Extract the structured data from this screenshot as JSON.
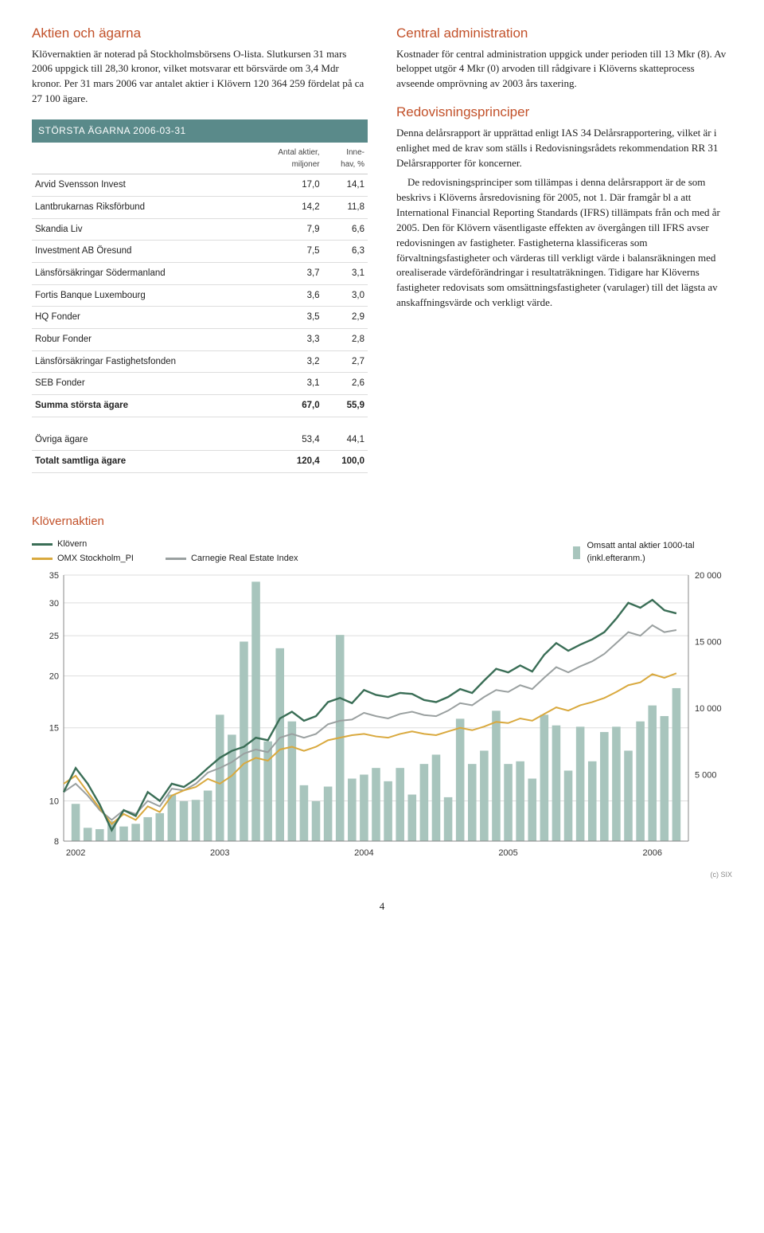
{
  "left": {
    "heading": "Aktien och ägarna",
    "para1": "Klövernaktien är noterad på Stockholmsbörsens O-lista. Slutkursen 31 mars 2006 uppgick till 28,30 kronor, vilket motsvarar ett börsvärde om 3,4 Mdr kronor. Per 31 mars 2006 var antalet aktier i Klövern 120 364 259 fördelat på ca 27 100 ägare.",
    "tableTitle": "STÖRSTA ÄGARNA 2006-03-31",
    "col1": "",
    "col2a": "Antal aktier,",
    "col2b": "miljoner",
    "col3a": "Inne-",
    "col3b": "hav, %",
    "rows": [
      {
        "n": "Arvid Svensson Invest",
        "a": "17,0",
        "b": "14,1"
      },
      {
        "n": "Lantbrukarnas Riksförbund",
        "a": "14,2",
        "b": "11,8"
      },
      {
        "n": "Skandia Liv",
        "a": "7,9",
        "b": "6,6"
      },
      {
        "n": "Investment AB Öresund",
        "a": "7,5",
        "b": "6,3"
      },
      {
        "n": "Länsförsäkringar Södermanland",
        "a": "3,7",
        "b": "3,1"
      },
      {
        "n": "Fortis Banque Luxembourg",
        "a": "3,6",
        "b": "3,0"
      },
      {
        "n": "HQ Fonder",
        "a": "3,5",
        "b": "2,9"
      },
      {
        "n": "Robur Fonder",
        "a": "3,3",
        "b": "2,8"
      },
      {
        "n": "Länsförsäkringar Fastighetsfonden",
        "a": "3,2",
        "b": "2,7"
      },
      {
        "n": "SEB Fonder",
        "a": "3,1",
        "b": "2,6"
      }
    ],
    "sum": {
      "n": "Summa största ägare",
      "a": "67,0",
      "b": "55,9"
    },
    "other": {
      "n": "Övriga ägare",
      "a": "53,4",
      "b": "44,1"
    },
    "total": {
      "n": "Totalt samtliga ägare",
      "a": "120,4",
      "b": "100,0"
    }
  },
  "right": {
    "h1": "Central administration",
    "p1": "Kostnader för central administration uppgick under perioden till 13 Mkr (8). Av beloppet utgör 4 Mkr (0) arvoden till rådgivare i Klöverns skatteprocess avseende omprövning av 2003 års taxering.",
    "h2": "Redovisningsprinciper",
    "p2": "Denna delårsrapport är upprättad enligt IAS 34 Delårsrapportering, vilket är i enlighet med de krav som ställs i Redovisningsrådets rekommendation RR 31 Delårsrapporter för koncerner.",
    "p3": "De redovisningsprinciper som tillämpas i denna delårsrapport är de som beskrivs i Klöverns årsredovisning för 2005, not 1. Där framgår bl a att International Financial Reporting Standards (IFRS) tillämpats från och med år 2005. Den för Klövern väsentligaste effekten av övergången till IFRS avser redovisningen av fastigheter. Fastigheterna klassificeras som förvaltningsfastigheter och värderas till verkligt värde i balansräkningen med orealiserade värdeförändringar i resultaträkningen. Tidigare har Klöverns fastigheter redovisats som omsättningsfastigheter (varulager) till det lägsta av anskaffningsvärde och verkligt värde."
  },
  "chart": {
    "title": "Klövernaktien",
    "legend": {
      "klovern": "Klövern",
      "omx": "OMX Stockholm_PI",
      "carnegie": "Carnegie Real Estate Index",
      "volume": "Omsatt antal aktier 1000-tal (inkl.efteranm.)"
    },
    "colors": {
      "klovern": "#3a6e56",
      "omx": "#d9a93e",
      "carnegie": "#9aa0a0",
      "bars": "#a8c5bd",
      "grid": "#dddddd",
      "axis": "#888888",
      "bg": "#ffffff"
    },
    "yLeftTicks": [
      8,
      10,
      15,
      20,
      25,
      30,
      35
    ],
    "yRightTicks": [
      5000,
      10000,
      15000,
      20000
    ],
    "yRightLabels": [
      "5 000",
      "10 000",
      "15 000",
      "20 000"
    ],
    "xLabels": [
      "2002",
      "2003",
      "2004",
      "2005",
      "2006"
    ],
    "xRange": [
      0,
      52
    ],
    "bars": [
      {
        "x": 1,
        "v": 2800
      },
      {
        "x": 2,
        "v": 1000
      },
      {
        "x": 3,
        "v": 900
      },
      {
        "x": 4,
        "v": 1500
      },
      {
        "x": 5,
        "v": 1100
      },
      {
        "x": 6,
        "v": 1300
      },
      {
        "x": 7,
        "v": 1800
      },
      {
        "x": 8,
        "v": 2100
      },
      {
        "x": 9,
        "v": 3500
      },
      {
        "x": 10,
        "v": 3000
      },
      {
        "x": 11,
        "v": 3100
      },
      {
        "x": 12,
        "v": 3800
      },
      {
        "x": 13,
        "v": 9500
      },
      {
        "x": 14,
        "v": 8000
      },
      {
        "x": 15,
        "v": 15000
      },
      {
        "x": 16,
        "v": 19500
      },
      {
        "x": 17,
        "v": 7500
      },
      {
        "x": 18,
        "v": 14500
      },
      {
        "x": 19,
        "v": 9000
      },
      {
        "x": 20,
        "v": 4200
      },
      {
        "x": 21,
        "v": 3000
      },
      {
        "x": 22,
        "v": 4100
      },
      {
        "x": 23,
        "v": 15500
      },
      {
        "x": 24,
        "v": 4700
      },
      {
        "x": 25,
        "v": 5000
      },
      {
        "x": 26,
        "v": 5500
      },
      {
        "x": 27,
        "v": 4500
      },
      {
        "x": 28,
        "v": 5500
      },
      {
        "x": 29,
        "v": 3500
      },
      {
        "x": 30,
        "v": 5800
      },
      {
        "x": 31,
        "v": 6500
      },
      {
        "x": 32,
        "v": 3300
      },
      {
        "x": 33,
        "v": 9200
      },
      {
        "x": 34,
        "v": 5800
      },
      {
        "x": 35,
        "v": 6800
      },
      {
        "x": 36,
        "v": 9800
      },
      {
        "x": 37,
        "v": 5800
      },
      {
        "x": 38,
        "v": 6000
      },
      {
        "x": 39,
        "v": 4700
      },
      {
        "x": 40,
        "v": 9500
      },
      {
        "x": 41,
        "v": 8700
      },
      {
        "x": 42,
        "v": 5300
      },
      {
        "x": 43,
        "v": 8600
      },
      {
        "x": 44,
        "v": 6000
      },
      {
        "x": 45,
        "v": 8200
      },
      {
        "x": 46,
        "v": 8600
      },
      {
        "x": 47,
        "v": 6800
      },
      {
        "x": 48,
        "v": 9000
      },
      {
        "x": 49,
        "v": 10200
      },
      {
        "x": 50,
        "v": 9400
      },
      {
        "x": 51,
        "v": 11500
      }
    ],
    "klovernLine": [
      [
        0,
        10.5
      ],
      [
        1,
        12
      ],
      [
        2,
        11
      ],
      [
        3,
        9.8
      ],
      [
        4,
        8.5
      ],
      [
        5,
        9.5
      ],
      [
        6,
        9.2
      ],
      [
        7,
        10.5
      ],
      [
        8,
        10
      ],
      [
        9,
        11
      ],
      [
        10,
        10.8
      ],
      [
        11,
        11.3
      ],
      [
        12,
        12
      ],
      [
        13,
        12.7
      ],
      [
        14,
        13.2
      ],
      [
        15,
        13.5
      ],
      [
        16,
        14.2
      ],
      [
        17,
        14
      ],
      [
        18,
        15.8
      ],
      [
        19,
        16.4
      ],
      [
        20,
        15.6
      ],
      [
        21,
        16
      ],
      [
        22,
        17.3
      ],
      [
        23,
        17.7
      ],
      [
        24,
        17.2
      ],
      [
        25,
        18.5
      ],
      [
        26,
        18
      ],
      [
        27,
        17.8
      ],
      [
        28,
        18.2
      ],
      [
        29,
        18.1
      ],
      [
        30,
        17.5
      ],
      [
        31,
        17.3
      ],
      [
        32,
        17.8
      ],
      [
        33,
        18.6
      ],
      [
        34,
        18.2
      ],
      [
        35,
        19.5
      ],
      [
        36,
        20.8
      ],
      [
        37,
        20.4
      ],
      [
        38,
        21.2
      ],
      [
        39,
        20.5
      ],
      [
        40,
        22.5
      ],
      [
        41,
        24
      ],
      [
        42,
        23
      ],
      [
        43,
        23.8
      ],
      [
        44,
        24.5
      ],
      [
        45,
        25.5
      ],
      [
        46,
        27.5
      ],
      [
        47,
        30
      ],
      [
        48,
        29.2
      ],
      [
        49,
        30.5
      ],
      [
        50,
        28.8
      ],
      [
        51,
        28.3
      ]
    ],
    "omxLine": [
      [
        0,
        11
      ],
      [
        1,
        11.5
      ],
      [
        2,
        10.5
      ],
      [
        3,
        9.6
      ],
      [
        4,
        8.8
      ],
      [
        5,
        9.3
      ],
      [
        6,
        9
      ],
      [
        7,
        9.7
      ],
      [
        8,
        9.4
      ],
      [
        9,
        10.3
      ],
      [
        10,
        10.6
      ],
      [
        11,
        10.8
      ],
      [
        12,
        11.3
      ],
      [
        13,
        11
      ],
      [
        14,
        11.5
      ],
      [
        15,
        12.3
      ],
      [
        16,
        12.7
      ],
      [
        17,
        12.5
      ],
      [
        18,
        13.3
      ],
      [
        19,
        13.5
      ],
      [
        20,
        13.2
      ],
      [
        21,
        13.5
      ],
      [
        22,
        14
      ],
      [
        23,
        14.2
      ],
      [
        24,
        14.4
      ],
      [
        25,
        14.5
      ],
      [
        26,
        14.3
      ],
      [
        27,
        14.2
      ],
      [
        28,
        14.5
      ],
      [
        29,
        14.7
      ],
      [
        30,
        14.5
      ],
      [
        31,
        14.4
      ],
      [
        32,
        14.7
      ],
      [
        33,
        15
      ],
      [
        34,
        14.8
      ],
      [
        35,
        15.1
      ],
      [
        36,
        15.5
      ],
      [
        37,
        15.4
      ],
      [
        38,
        15.8
      ],
      [
        39,
        15.6
      ],
      [
        40,
        16.2
      ],
      [
        41,
        16.8
      ],
      [
        42,
        16.5
      ],
      [
        43,
        17
      ],
      [
        44,
        17.3
      ],
      [
        45,
        17.7
      ],
      [
        46,
        18.3
      ],
      [
        47,
        19
      ],
      [
        48,
        19.3
      ],
      [
        49,
        20.2
      ],
      [
        50,
        19.8
      ],
      [
        51,
        20.3
      ]
    ],
    "carnegieLine": [
      [
        0,
        10.5
      ],
      [
        1,
        11
      ],
      [
        2,
        10.3
      ],
      [
        3,
        9.5
      ],
      [
        4,
        9
      ],
      [
        5,
        9.5
      ],
      [
        6,
        9.3
      ],
      [
        7,
        10
      ],
      [
        8,
        9.7
      ],
      [
        9,
        10.7
      ],
      [
        10,
        10.6
      ],
      [
        11,
        11
      ],
      [
        12,
        11.7
      ],
      [
        13,
        12
      ],
      [
        14,
        12.4
      ],
      [
        15,
        13
      ],
      [
        16,
        13.3
      ],
      [
        17,
        13.1
      ],
      [
        18,
        14.2
      ],
      [
        19,
        14.5
      ],
      [
        20,
        14.2
      ],
      [
        21,
        14.5
      ],
      [
        22,
        15.3
      ],
      [
        23,
        15.6
      ],
      [
        24,
        15.7
      ],
      [
        25,
        16.3
      ],
      [
        26,
        16
      ],
      [
        27,
        15.8
      ],
      [
        28,
        16.2
      ],
      [
        29,
        16.4
      ],
      [
        30,
        16.1
      ],
      [
        31,
        16
      ],
      [
        32,
        16.5
      ],
      [
        33,
        17.2
      ],
      [
        34,
        17
      ],
      [
        35,
        17.8
      ],
      [
        36,
        18.5
      ],
      [
        37,
        18.3
      ],
      [
        38,
        19
      ],
      [
        39,
        18.6
      ],
      [
        40,
        19.8
      ],
      [
        41,
        21
      ],
      [
        42,
        20.4
      ],
      [
        43,
        21.1
      ],
      [
        44,
        21.7
      ],
      [
        45,
        22.6
      ],
      [
        46,
        24
      ],
      [
        47,
        25.5
      ],
      [
        48,
        25
      ],
      [
        49,
        26.5
      ],
      [
        50,
        25.5
      ],
      [
        51,
        25.8
      ]
    ],
    "copyright": "(c) SIX"
  },
  "pageNum": "4"
}
